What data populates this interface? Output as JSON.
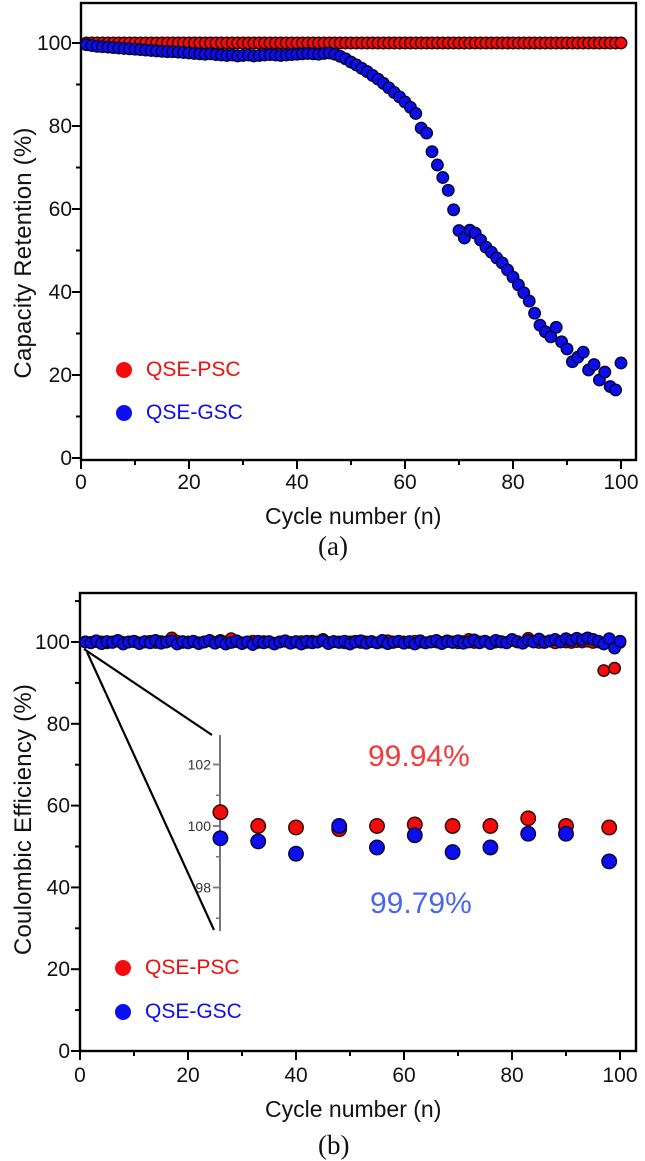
{
  "figure": {
    "background": "#ffffff",
    "frame_color": "#000000",
    "tick_label_color": "#121212"
  },
  "panels": {
    "a": {
      "caption": "(a)",
      "xlabel": "Cycle number (n)",
      "ylabel": "Capacity Retention (%)",
      "legend": [
        {
          "label": "QSE-PSC",
          "color": "#f20d0d"
        },
        {
          "label": "QSE-GSC",
          "color": "#0d0df2"
        }
      ]
    },
    "b": {
      "caption": "(b)",
      "xlabel": "Cycle number (n)",
      "ylabel": "Coulombic Efficiency (%)",
      "legend": [
        {
          "label": "QSE-PSC",
          "color": "#f20d0d"
        },
        {
          "label": "QSE-GSC",
          "color": "#0d0df2"
        }
      ],
      "annotations": [
        {
          "text": "99.94%",
          "color": "#f23b3b"
        },
        {
          "text": "99.79%",
          "color": "#4a66ee"
        }
      ]
    }
  },
  "chart_data": [
    {
      "id": "a",
      "type": "scatter",
      "title": "",
      "xlabel": "Cycle number (n)",
      "ylabel": "Capacity Retention (%)",
      "xlim": [
        0,
        102.8
      ],
      "ylim": [
        0,
        110
      ],
      "x_ticks": [
        0,
        20,
        40,
        60,
        80,
        100
      ],
      "x_minor_ticks": [
        10,
        30,
        50,
        70,
        90
      ],
      "y_ticks": [
        0,
        20,
        40,
        60,
        80,
        100
      ],
      "y_minor_ticks": [
        10,
        30,
        50,
        70,
        90
      ],
      "x_start": 1,
      "x_step": 1,
      "series": [
        {
          "name": "QSE-PSC",
          "color": "#f20d0d",
          "edge": "#3c0606",
          "values": [
            100,
            100,
            100,
            100,
            100,
            100,
            100,
            100,
            100,
            100,
            100,
            100,
            100,
            100,
            100,
            100,
            100,
            100,
            100,
            100,
            100,
            100,
            100,
            100,
            100,
            100,
            100,
            100,
            100,
            100,
            100,
            100,
            100,
            100,
            100,
            100,
            100,
            100,
            100,
            100,
            100,
            100,
            100,
            100,
            100,
            100,
            100,
            100,
            100,
            100,
            100,
            100,
            100,
            100,
            100,
            100,
            100,
            100,
            100,
            100,
            100,
            100,
            100,
            100,
            100,
            100,
            100,
            100,
            100,
            100,
            100,
            100,
            100,
            100,
            100,
            100,
            100,
            100,
            100,
            100,
            100,
            100,
            100,
            100,
            100,
            100,
            100,
            100,
            100,
            100,
            100,
            100,
            100,
            100,
            100,
            100,
            100,
            100,
            100,
            100
          ]
        },
        {
          "name": "QSE-GSC",
          "color": "#0d0df2",
          "edge": "#06063c",
          "values": [
            99.6,
            99.4,
            99.2,
            99.1,
            99.0,
            98.9,
            98.8,
            98.7,
            98.6,
            98.5,
            98.4,
            98.3,
            98.2,
            98.1,
            98.0,
            97.9,
            97.9,
            97.8,
            97.7,
            97.6,
            97.5,
            97.4,
            97.3,
            97.4,
            97.2,
            97.1,
            97.0,
            97.1,
            96.9,
            97.0,
            97.1,
            96.9,
            97.0,
            97.1,
            97.2,
            97.1,
            97.0,
            97.1,
            97.2,
            97.3,
            97.4,
            97.5,
            97.4,
            97.3,
            97.5,
            97.6,
            97.3,
            96.8,
            96.2,
            95.4,
            94.7,
            93.9,
            93.1,
            92.2,
            91.3,
            90.3,
            89.2,
            88.1,
            87.0,
            85.8,
            84.5,
            83.0,
            79.5,
            78.3,
            73.8,
            70.6,
            67.6,
            64.5,
            59.8,
            54.8,
            53.0,
            54.9,
            54.2,
            52.5,
            50.8,
            49.6,
            48.2,
            47.0,
            45.3,
            43.6,
            41.7,
            39.8,
            37.8,
            34.9,
            32.0,
            30.4,
            29.2,
            31.5,
            28.0,
            26.3,
            23.2,
            24.3,
            25.5,
            21.2,
            22.5,
            18.8,
            20.7,
            17.2,
            16.4,
            22.9
          ]
        }
      ]
    },
    {
      "id": "b",
      "type": "scatter",
      "title": "",
      "xlabel": "Cycle number (n)",
      "ylabel": "Coulombic Efficiency (%)",
      "xlim": [
        0,
        103
      ],
      "ylim": [
        0,
        112
      ],
      "x_ticks": [
        0,
        20,
        40,
        60,
        80,
        100
      ],
      "x_minor_ticks": [
        10,
        30,
        50,
        70,
        90
      ],
      "y_ticks": [
        0,
        20,
        40,
        60,
        80,
        100
      ],
      "y_minor_ticks": [
        10,
        30,
        50,
        70,
        90,
        110
      ],
      "x_start": 1,
      "x_step": 1,
      "mean_labels": {
        "QSE-PSC": "99.94%",
        "QSE-GSC": "99.79%"
      },
      "series": [
        {
          "name": "QSE-PSC",
          "color": "#f20d0d",
          "edge": "#3c0606",
          "values": [
            100.0,
            99.9,
            100.1,
            100.0,
            99.8,
            100.0,
            100.2,
            99.9,
            100.0,
            100.1,
            99.8,
            100.0,
            100.2,
            99.9,
            100.1,
            100.0,
            101.0,
            100.2,
            99.9,
            100.0,
            100.1,
            99.8,
            100.0,
            100.3,
            99.9,
            100.4,
            100.0,
            100.8,
            100.1,
            99.8,
            100.0,
            100.2,
            99.9,
            100.1,
            100.0,
            99.7,
            100.0,
            100.2,
            99.9,
            100.0,
            100.1,
            99.9,
            100.2,
            100.0,
            100.6,
            99.9,
            100.1,
            100.0,
            99.8,
            100.0,
            100.2,
            99.9,
            100.0,
            100.1,
            99.8,
            100.0,
            100.3,
            99.9,
            100.1,
            100.0,
            99.9,
            100.2,
            100.0,
            99.8,
            100.1,
            100.0,
            99.9,
            100.3,
            100.0,
            99.8,
            100.1,
            100.6,
            99.9,
            100.0,
            100.2,
            99.8,
            100.0,
            100.1,
            99.9,
            100.4,
            100.0,
            99.8,
            100.9,
            100.1,
            99.9,
            100.0,
            100.2,
            99.8,
            100.1,
            100.0,
            99.9,
            100.1,
            100.0,
            100.2,
            99.9,
            100.0,
            93.0,
            100.0,
            93.6,
            99.9
          ]
        },
        {
          "name": "QSE-GSC",
          "color": "#0d0df2",
          "edge": "#06063c",
          "values": [
            100.0,
            99.8,
            100.3,
            99.6,
            100.1,
            99.9,
            100.4,
            99.5,
            100.0,
            100.2,
            99.6,
            100.1,
            99.8,
            100.4,
            99.7,
            100.0,
            100.3,
            99.5,
            100.1,
            99.8,
            100.2,
            99.6,
            100.0,
            100.4,
            99.7,
            100.1,
            99.5,
            99.9,
            100.3,
            99.6,
            100.0,
            99.4,
            100.2,
            99.8,
            100.1,
            99.5,
            100.0,
            100.3,
            99.7,
            100.1,
            99.5,
            100.2,
            99.8,
            100.0,
            100.4,
            99.6,
            100.1,
            99.9,
            100.2,
            99.5,
            100.0,
            100.3,
            99.7,
            100.1,
            99.8,
            100.4,
            99.6,
            100.0,
            100.2,
            99.7,
            100.1,
            99.5,
            100.3,
            99.8,
            100.0,
            100.4,
            99.6,
            100.1,
            99.9,
            100.3,
            99.7,
            100.0,
            100.5,
            99.8,
            100.2,
            99.6,
            100.4,
            100.0,
            99.8,
            100.6,
            100.1,
            99.7,
            100.4,
            100.0,
            100.7,
            99.9,
            100.3,
            100.6,
            100.0,
            100.8,
            100.4,
            100.9,
            100.5,
            101.0,
            100.6,
            100.2,
            99.5,
            100.8,
            98.5,
            100.2
          ]
        }
      ],
      "inset": {
        "ylim": [
          96.2,
          103.0
        ],
        "y_ticks": [
          98,
          100,
          102
        ],
        "y_minor_ticks": [
          97,
          99,
          101
        ],
        "cycles": [
          26,
          33,
          40,
          48,
          55,
          62,
          69,
          76,
          83,
          90,
          98
        ],
        "series": [
          {
            "name": "QSE-PSC",
            "color": "#f20d0d",
            "edge": "#3c0606",
            "values": [
              100.45,
              100.0,
              99.95,
              99.9,
              100.0,
              100.05,
              100.0,
              100.0,
              100.25,
              100.0,
              99.95
            ]
          },
          {
            "name": "QSE-GSC",
            "color": "#0d0df2",
            "edge": "#06063c",
            "values": [
              99.6,
              99.5,
              99.1,
              100.0,
              99.3,
              99.7,
              99.15,
              99.3,
              99.75,
              99.75,
              98.85
            ]
          }
        ]
      }
    }
  ]
}
